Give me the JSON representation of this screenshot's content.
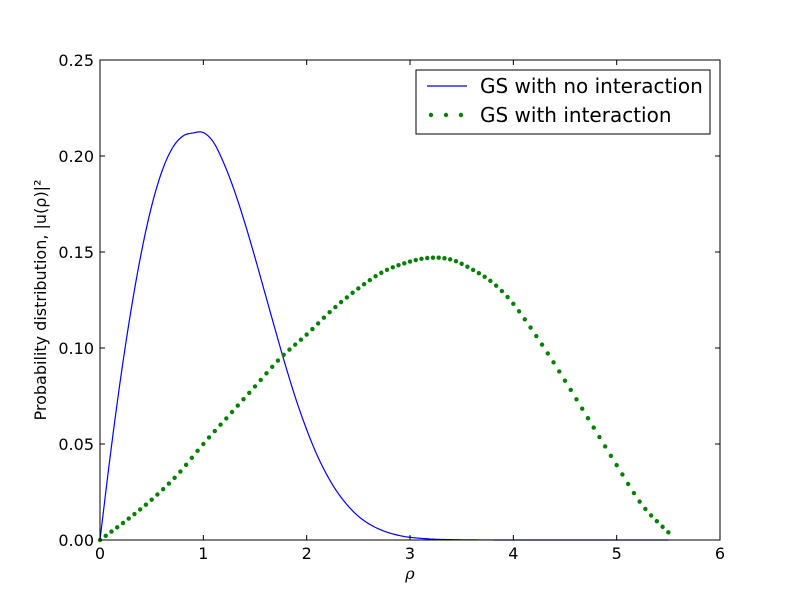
{
  "chart_data": {
    "type": "line",
    "title": "",
    "xlabel": "ρ",
    "ylabel": "Probability distribution, |u(ρ)|²",
    "xlim": [
      0,
      6
    ],
    "ylim": [
      0,
      0.25
    ],
    "x_ticks": [
      "0",
      "1",
      "2",
      "3",
      "4",
      "5",
      "6"
    ],
    "y_ticks": [
      "0.00",
      "0.05",
      "0.10",
      "0.15",
      "0.20",
      "0.25"
    ],
    "grid": false,
    "legend_position": "top-right",
    "series": [
      {
        "name": "GS with no interaction",
        "style": "line",
        "color": "#0000ff",
        "x": [
          0,
          0.1,
          0.2,
          0.3,
          0.4,
          0.5,
          0.6,
          0.7,
          0.8,
          0.9,
          1.0,
          1.1,
          1.2,
          1.3,
          1.4,
          1.5,
          1.6,
          1.7,
          1.8,
          1.9,
          2.0,
          2.1,
          2.2,
          2.3,
          2.4,
          2.5,
          2.6,
          2.7,
          2.8,
          2.9,
          3.0,
          3.2,
          3.4,
          3.6,
          3.8,
          4.0,
          4.3,
          4.6,
          5.0,
          5.5
        ],
        "y": [
          0,
          0.0442,
          0.0844,
          0.1196,
          0.1497,
          0.174,
          0.1921,
          0.2041,
          0.2103,
          0.212,
          0.2122,
          0.207,
          0.196,
          0.182,
          0.1654,
          0.1471,
          0.1279,
          0.1087,
          0.09,
          0.0727,
          0.0575,
          0.0443,
          0.0335,
          0.0247,
          0.0178,
          0.0124,
          0.0085,
          0.0057,
          0.0037,
          0.0023,
          0.0014,
          0.0005,
          0.00018,
          6e-05,
          2e-05,
          1e-05,
          0,
          0,
          0,
          0
        ]
      },
      {
        "name": "GS with interaction",
        "style": "dotted",
        "color": "#008000",
        "x": [
          0,
          0.25,
          0.5,
          0.75,
          1.0,
          1.25,
          1.5,
          1.75,
          2.0,
          2.25,
          2.5,
          2.75,
          3.0,
          3.2,
          3.4,
          3.6,
          3.8,
          4.0,
          4.25,
          4.5,
          4.75,
          5.0,
          5.25,
          5.5
        ],
        "y": [
          0,
          0.01,
          0.021,
          0.034,
          0.05,
          0.065,
          0.08,
          0.095,
          0.107,
          0.12,
          0.131,
          0.14,
          0.145,
          0.147,
          0.146,
          0.141,
          0.134,
          0.123,
          0.104,
          0.083,
          0.061,
          0.039,
          0.018,
          0.004
        ]
      }
    ]
  }
}
